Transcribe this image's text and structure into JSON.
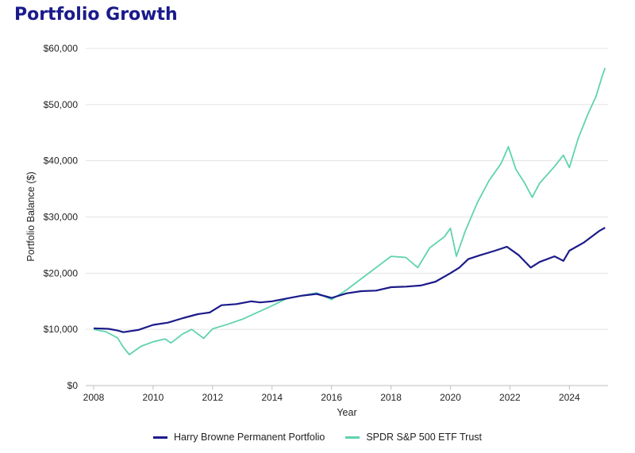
{
  "title": "Portfolio Growth",
  "colors": {
    "hbpp": "#1b1b8a",
    "spy": "#5fd3b0",
    "grid": "#e3e3e3",
    "title": "#1a1a8c"
  },
  "chart_data": {
    "type": "line",
    "xlabel": "Year",
    "ylabel": "Portfolio Balance ($)",
    "xlim": [
      2008,
      2025.3
    ],
    "ylim": [
      0,
      60000
    ],
    "xticks": [
      2008,
      2010,
      2012,
      2014,
      2016,
      2018,
      2020,
      2022,
      2024
    ],
    "xtick_labels": [
      "2008",
      "2010",
      "2012",
      "2014",
      "2016",
      "2018",
      "2020",
      "2022",
      "2024"
    ],
    "yticks": [
      0,
      10000,
      20000,
      30000,
      40000,
      50000,
      60000
    ],
    "ytick_labels": [
      "$0",
      "$10,000",
      "$20,000",
      "$30,000",
      "$40,000",
      "$50,000",
      "$60,000"
    ],
    "grid": true,
    "legend_position": "bottom-center",
    "series": [
      {
        "name": "Harry Browne Permanent Portfolio",
        "color": "#1b1b8a",
        "x": [
          2008.0,
          2008.5,
          2008.8,
          2009.0,
          2009.5,
          2010.0,
          2010.5,
          2011.0,
          2011.5,
          2011.9,
          2012.3,
          2012.8,
          2013.3,
          2013.6,
          2014.0,
          2014.5,
          2015.0,
          2015.5,
          2016.0,
          2016.5,
          2017.0,
          2017.5,
          2018.0,
          2018.5,
          2019.0,
          2019.5,
          2020.0,
          2020.3,
          2020.6,
          2021.0,
          2021.5,
          2021.9,
          2022.3,
          2022.7,
          2023.0,
          2023.5,
          2023.8,
          2024.0,
          2024.5,
          2025.0,
          2025.2
        ],
        "y": [
          10200,
          10100,
          9800,
          9500,
          9900,
          10800,
          11200,
          12000,
          12700,
          13000,
          14300,
          14500,
          15000,
          14800,
          15000,
          15500,
          16000,
          16300,
          15600,
          16400,
          16800,
          16900,
          17500,
          17600,
          17800,
          18500,
          20000,
          21000,
          22500,
          23200,
          24000,
          24700,
          23200,
          21000,
          22000,
          23000,
          22200,
          24000,
          25500,
          27500,
          28100
        ]
      },
      {
        "name": "SPDR S&P 500 ETF Trust",
        "color": "#5fd3b0",
        "x": [
          2008.0,
          2008.4,
          2008.8,
          2009.0,
          2009.2,
          2009.6,
          2010.0,
          2010.4,
          2010.6,
          2011.0,
          2011.3,
          2011.7,
          2012.0,
          2012.5,
          2013.0,
          2013.5,
          2014.0,
          2014.5,
          2015.0,
          2015.5,
          2016.0,
          2016.5,
          2017.0,
          2017.5,
          2018.0,
          2018.5,
          2018.9,
          2019.3,
          2019.8,
          2020.0,
          2020.2,
          2020.5,
          2020.9,
          2021.3,
          2021.7,
          2021.95,
          2022.2,
          2022.5,
          2022.75,
          2023.0,
          2023.5,
          2023.8,
          2024.0,
          2024.3,
          2024.6,
          2024.9,
          2025.1,
          2025.2
        ],
        "y": [
          10000,
          9600,
          8500,
          6800,
          5500,
          7000,
          7800,
          8300,
          7600,
          9200,
          10000,
          8400,
          10100,
          10900,
          11800,
          13000,
          14200,
          15500,
          16000,
          16500,
          15300,
          17000,
          19000,
          21000,
          23000,
          22800,
          21000,
          24500,
          26500,
          28000,
          23000,
          27500,
          32500,
          36500,
          39500,
          42500,
          38500,
          36000,
          33500,
          36000,
          39000,
          41000,
          38800,
          44000,
          48000,
          51500,
          55000,
          56500
        ]
      }
    ]
  }
}
